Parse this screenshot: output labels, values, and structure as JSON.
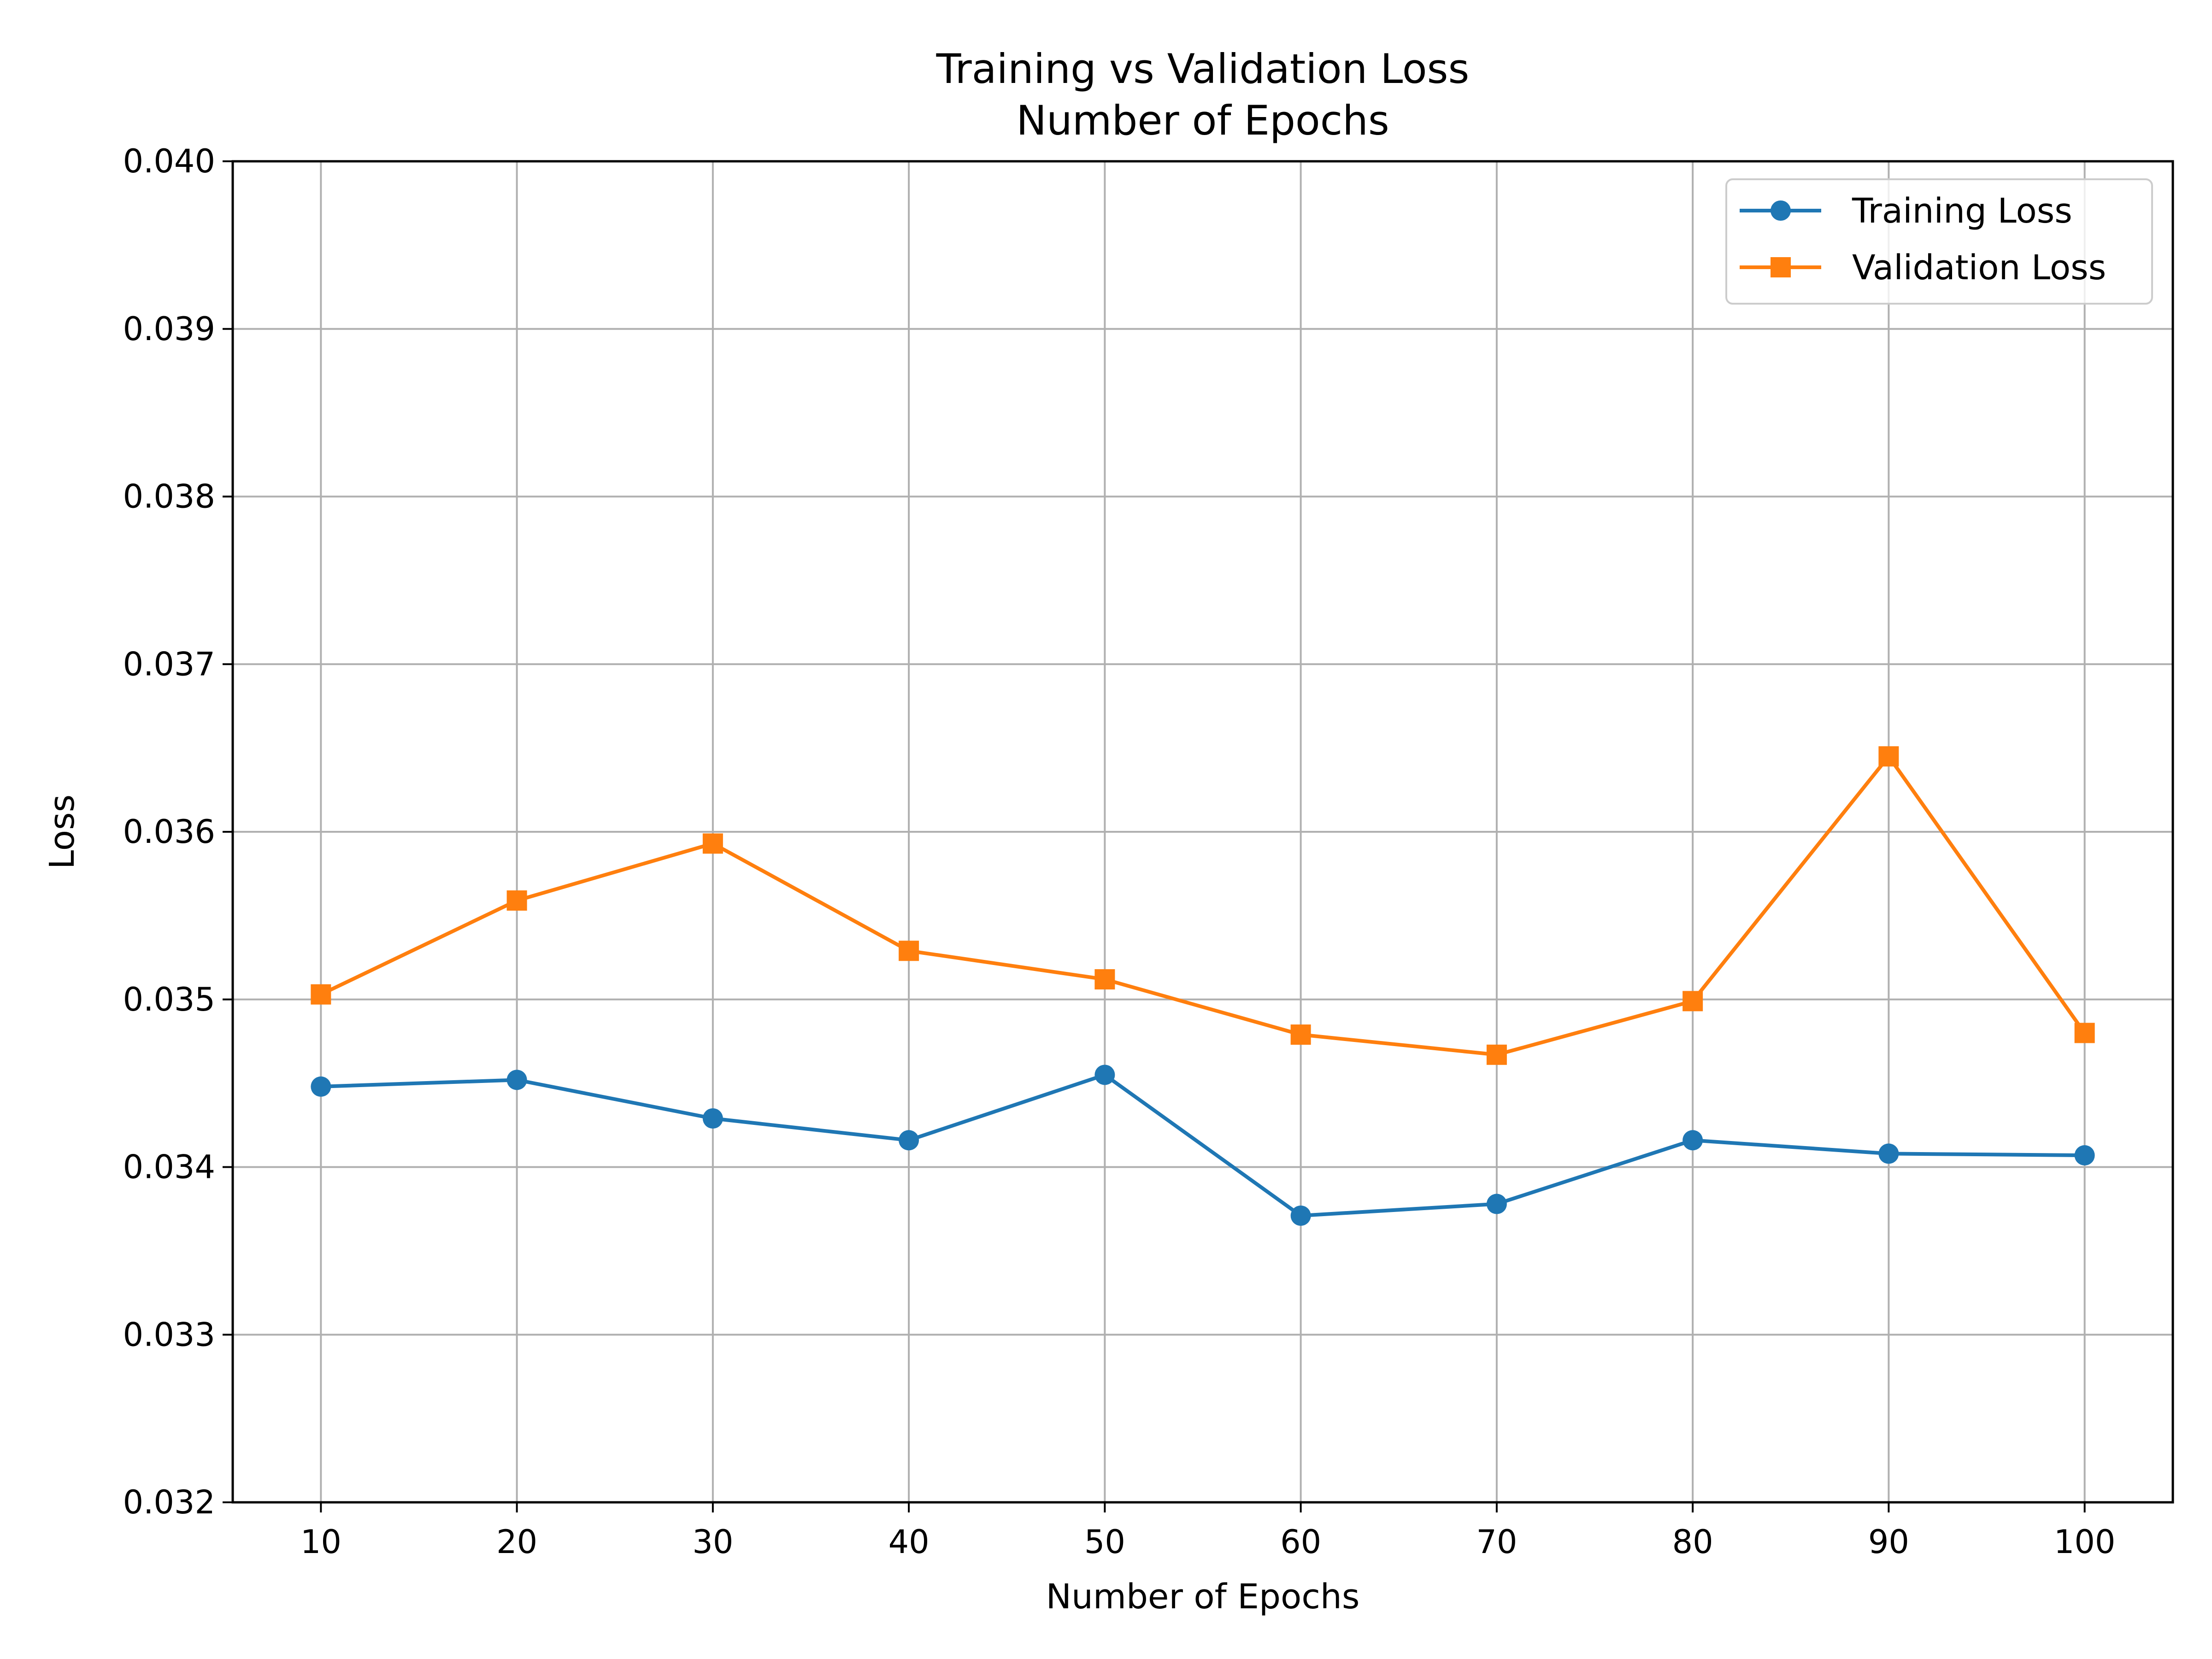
{
  "chart_data": {
    "type": "line",
    "title_lines": [
      "Training vs Validation Loss",
      "Number of Epochs"
    ],
    "xlabel": "Number of Epochs",
    "ylabel": "Loss",
    "x": [
      10,
      20,
      30,
      40,
      50,
      60,
      70,
      80,
      90,
      100
    ],
    "xlim": [
      5.5,
      104.5
    ],
    "ylim": [
      0.032,
      0.04
    ],
    "xticks": [
      10,
      20,
      30,
      40,
      50,
      60,
      70,
      80,
      90,
      100
    ],
    "yticks": [
      0.032,
      0.033,
      0.034,
      0.035,
      0.036,
      0.037,
      0.038,
      0.039,
      0.04
    ],
    "ytick_labels": [
      "0.032",
      "0.033",
      "0.034",
      "0.035",
      "0.036",
      "0.037",
      "0.038",
      "0.039",
      "0.040"
    ],
    "grid": true,
    "legend_position": "top-right",
    "series": [
      {
        "name": "Training Loss",
        "color": "#1f77b4",
        "marker": "circle",
        "values": [
          0.03448,
          0.03452,
          0.03429,
          0.03416,
          0.03455,
          0.03371,
          0.03378,
          0.03416,
          0.03408,
          0.03407
        ]
      },
      {
        "name": "Validation Loss",
        "color": "#ff7f0e",
        "marker": "square",
        "values": [
          0.03503,
          0.03559,
          0.03593,
          0.03529,
          0.03512,
          0.03479,
          0.03467,
          0.03499,
          0.03645,
          0.0348
        ]
      }
    ]
  }
}
